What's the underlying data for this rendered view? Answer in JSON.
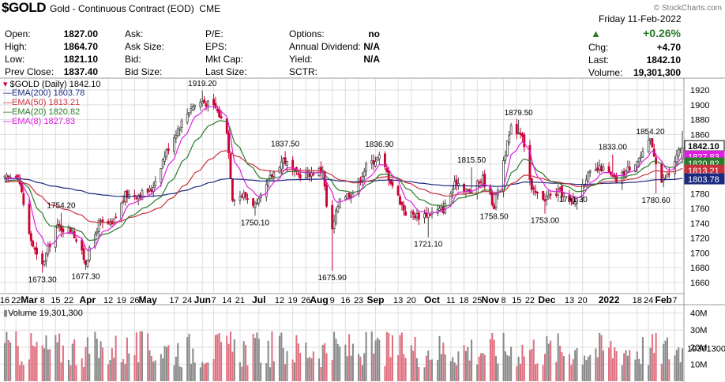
{
  "header": {
    "symbol": "$GOLD",
    "description": "Gold - Continuous Contract (EOD)",
    "exchange": "CME",
    "watermark": "© StockCharts.com"
  },
  "quote": {
    "left": [
      {
        "label": "Open:",
        "value": "1827.00"
      },
      {
        "label": "High:",
        "value": "1864.70"
      },
      {
        "label": "Low:",
        "value": "1821.10"
      },
      {
        "label": "Prev Close:",
        "value": "1837.40"
      }
    ],
    "mid": [
      {
        "label": "Ask:",
        "value": ""
      },
      {
        "label": "Ask Size:",
        "value": ""
      },
      {
        "label": "Bid:",
        "value": ""
      },
      {
        "label": "Bid Size:",
        "value": ""
      }
    ],
    "right_a": [
      {
        "label": "P/E:",
        "value": ""
      },
      {
        "label": "EPS:",
        "value": ""
      },
      {
        "label": "Mkt Cap:",
        "value": ""
      },
      {
        "label": "Last Size:",
        "value": ""
      }
    ],
    "right_b": [
      {
        "label": "Options:",
        "value": "no"
      },
      {
        "label": "Annual Dividend:",
        "value": "N/A"
      },
      {
        "label": "Yield:",
        "value": "N/A"
      },
      {
        "label": "SCTR:",
        "value": ""
      }
    ],
    "date": "Friday  11-Feb-2022",
    "change_pct": "+0.26%",
    "last": [
      {
        "label": "Chg:",
        "value": "+4.70"
      },
      {
        "label": "Last:",
        "value": "1842.10"
      },
      {
        "label": "Volume:",
        "value": "19,301,300"
      }
    ]
  },
  "legend": {
    "main": "$GOLD (Daily) 1842.10",
    "ema200": "EMA(200) 1803.78",
    "ema50": "EMA(50) 1813.21",
    "ema20": "EMA(20) 1820.82",
    "ema8": "EMA(8) 1827.83",
    "volume": "Volume 19,301,300"
  },
  "colors": {
    "up": "#444444",
    "down": "#cc0033",
    "ema200": "#1a2a80",
    "ema50": "#c8323c",
    "ema20": "#2a7a2a",
    "ema8": "#e020e0",
    "vol_up": "#8a8a8a",
    "vol_down": "#e07080",
    "grid": "#dddddd"
  },
  "chart_data": [
    {
      "type": "candlestick",
      "ylim": [
        1645,
        1935
      ],
      "yticks": [
        1660,
        1680,
        1700,
        1720,
        1740,
        1760,
        1780,
        1800,
        1820,
        1840,
        1860,
        1880,
        1900,
        1920
      ],
      "x_range": [
        "2021-02-16",
        "2022-02-11"
      ],
      "xticks": [
        {
          "label": "16",
          "date": "2021-02-16"
        },
        {
          "label": "22",
          "date": "2021-02-22"
        },
        {
          "label": "Mar",
          "date": "2021-03-01"
        },
        {
          "label": "8",
          "date": "2021-03-08"
        },
        {
          "label": "15",
          "date": "2021-03-15"
        },
        {
          "label": "22",
          "date": "2021-03-22"
        },
        {
          "label": "Apr",
          "date": "2021-04-01"
        },
        {
          "label": "12",
          "date": "2021-04-12"
        },
        {
          "label": "19",
          "date": "2021-04-19"
        },
        {
          "label": "26",
          "date": "2021-04-26"
        },
        {
          "label": "May",
          "date": "2021-05-03"
        },
        {
          "label": "17",
          "date": "2021-05-17"
        },
        {
          "label": "24",
          "date": "2021-05-24"
        },
        {
          "label": "Jun",
          "date": "2021-06-01"
        },
        {
          "label": "7",
          "date": "2021-06-07"
        },
        {
          "label": "14",
          "date": "2021-06-14"
        },
        {
          "label": "21",
          "date": "2021-06-21"
        },
        {
          "label": "Jul",
          "date": "2021-07-01"
        },
        {
          "label": "12",
          "date": "2021-07-12"
        },
        {
          "label": "19",
          "date": "2021-07-19"
        },
        {
          "label": "26",
          "date": "2021-07-26"
        },
        {
          "label": "Aug",
          "date": "2021-08-02"
        },
        {
          "label": "9",
          "date": "2021-08-09"
        },
        {
          "label": "16",
          "date": "2021-08-16"
        },
        {
          "label": "23",
          "date": "2021-08-23"
        },
        {
          "label": "Sep",
          "date": "2021-09-01"
        },
        {
          "label": "13",
          "date": "2021-09-13"
        },
        {
          "label": "20",
          "date": "2021-09-20"
        },
        {
          "label": "Oct",
          "date": "2021-10-01"
        },
        {
          "label": "11",
          "date": "2021-10-11"
        },
        {
          "label": "18",
          "date": "2021-10-18"
        },
        {
          "label": "25",
          "date": "2021-10-25"
        },
        {
          "label": "Nov",
          "date": "2021-11-01"
        },
        {
          "label": "8",
          "date": "2021-11-08"
        },
        {
          "label": "15",
          "date": "2021-11-15"
        },
        {
          "label": "22",
          "date": "2021-11-22"
        },
        {
          "label": "Dec",
          "date": "2021-12-01"
        },
        {
          "label": "13",
          "date": "2021-12-13"
        },
        {
          "label": "20",
          "date": "2021-12-20"
        },
        {
          "label": "2022",
          "date": "2022-01-03"
        },
        {
          "label": "18",
          "date": "2022-01-18"
        },
        {
          "label": "24",
          "date": "2022-01-24"
        },
        {
          "label": "Feb",
          "date": "2022-02-01"
        },
        {
          "label": "7",
          "date": "2022-02-07"
        }
      ],
      "close_anchors": [
        [
          "2021-02-16",
          1800
        ],
        [
          "2021-02-23",
          1808
        ],
        [
          "2021-03-01",
          1725
        ],
        [
          "2021-03-05",
          1695
        ],
        [
          "2021-03-08",
          1683
        ],
        [
          "2021-03-15",
          1735
        ],
        [
          "2021-03-24",
          1730
        ],
        [
          "2021-03-31",
          1687
        ],
        [
          "2021-04-07",
          1740
        ],
        [
          "2021-04-14",
          1737
        ],
        [
          "2021-04-21",
          1778
        ],
        [
          "2021-04-27",
          1778
        ],
        [
          "2021-05-05",
          1785
        ],
        [
          "2021-05-12",
          1832
        ],
        [
          "2021-05-19",
          1868
        ],
        [
          "2021-05-26",
          1897
        ],
        [
          "2021-06-01",
          1905
        ],
        [
          "2021-06-08",
          1896
        ],
        [
          "2021-06-14",
          1866
        ],
        [
          "2021-06-17",
          1775
        ],
        [
          "2021-06-23",
          1778
        ],
        [
          "2021-06-30",
          1763
        ],
        [
          "2021-07-07",
          1801
        ],
        [
          "2021-07-14",
          1827
        ],
        [
          "2021-07-21",
          1805
        ],
        [
          "2021-07-28",
          1807
        ],
        [
          "2021-08-04",
          1813
        ],
        [
          "2021-08-06",
          1763
        ],
        [
          "2021-08-09",
          1730
        ],
        [
          "2021-08-13",
          1776
        ],
        [
          "2021-08-20",
          1781
        ],
        [
          "2021-08-27",
          1817
        ],
        [
          "2021-09-03",
          1830
        ],
        [
          "2021-09-10",
          1792
        ],
        [
          "2021-09-17",
          1754
        ],
        [
          "2021-09-24",
          1750
        ],
        [
          "2021-09-30",
          1754
        ],
        [
          "2021-10-07",
          1759
        ],
        [
          "2021-10-14",
          1797
        ],
        [
          "2021-10-21",
          1781
        ],
        [
          "2021-10-28",
          1801
        ],
        [
          "2021-11-03",
          1763
        ],
        [
          "2021-11-08",
          1825
        ],
        [
          "2021-11-12",
          1868
        ],
        [
          "2021-11-18",
          1862
        ],
        [
          "2021-11-23",
          1783
        ],
        [
          "2021-11-30",
          1774
        ],
        [
          "2021-12-08",
          1783
        ],
        [
          "2021-12-15",
          1764
        ],
        [
          "2021-12-22",
          1803
        ],
        [
          "2021-12-30",
          1815
        ],
        [
          "2022-01-07",
          1797
        ],
        [
          "2022-01-14",
          1816
        ],
        [
          "2022-01-21",
          1833
        ],
        [
          "2022-01-25",
          1853
        ],
        [
          "2022-01-31",
          1796
        ],
        [
          "2022-02-04",
          1807
        ],
        [
          "2022-02-09",
          1836
        ],
        [
          "2022-02-11",
          1842
        ]
      ],
      "price_labels": [
        {
          "text": "1919.20",
          "date": "2021-06-01",
          "value": 1919.2,
          "pos": "above"
        },
        {
          "text": "1879.50",
          "date": "2021-11-16",
          "value": 1879.5,
          "pos": "above"
        },
        {
          "text": "1854.20",
          "date": "2022-01-25",
          "value": 1854.2,
          "pos": "above"
        },
        {
          "text": "1837.50",
          "date": "2021-07-15",
          "value": 1837.5,
          "pos": "above"
        },
        {
          "text": "1836.90",
          "date": "2021-09-03",
          "value": 1836.9,
          "pos": "above"
        },
        {
          "text": "1833.00",
          "date": "2022-01-05",
          "value": 1833.0,
          "pos": "above"
        },
        {
          "text": "1815.50",
          "date": "2021-10-22",
          "value": 1815.5,
          "pos": "above"
        },
        {
          "text": "1754.20",
          "date": "2021-03-18",
          "value": 1754.2,
          "pos": "above"
        },
        {
          "text": "1750.10",
          "date": "2021-06-29",
          "value": 1750.1,
          "pos": "below"
        },
        {
          "text": "1758.50",
          "date": "2021-11-03",
          "value": 1758.5,
          "pos": "below"
        },
        {
          "text": "1781.30",
          "date": "2021-12-15",
          "value": 1781.3,
          "pos": "below"
        },
        {
          "text": "1780.60",
          "date": "2022-01-28",
          "value": 1780.6,
          "pos": "below"
        },
        {
          "text": "1753.00",
          "date": "2021-11-30",
          "value": 1753.0,
          "pos": "below"
        },
        {
          "text": "1721.10",
          "date": "2021-09-29",
          "value": 1721.1,
          "pos": "below"
        },
        {
          "text": "1675.90",
          "date": "2021-08-09",
          "value": 1675.9,
          "pos": "below"
        },
        {
          "text": "1673.30",
          "date": "2021-03-08",
          "value": 1673.3,
          "pos": "below"
        },
        {
          "text": "1677.30",
          "date": "2021-03-31",
          "value": 1677.3,
          "pos": "below"
        }
      ],
      "right_axis_values": [
        {
          "text": "1842.10",
          "value": 1842.1,
          "color": "#000000",
          "bold": true
        },
        {
          "text": "1827.83",
          "value": 1827.83,
          "color": "#e020e0"
        },
        {
          "text": "1820.82",
          "value": 1820.82,
          "color": "#2a7a2a"
        },
        {
          "text": "1813.21",
          "value": 1813.21,
          "color": "#c8323c"
        },
        {
          "text": "1803.78",
          "value": 1803.78,
          "color": "#1a2a80"
        }
      ],
      "ema_periods": [
        200,
        50,
        20,
        8
      ]
    },
    {
      "type": "bar",
      "name": "Volume",
      "ylim": [
        0,
        44000000
      ],
      "yticks": [
        {
          "label": "40M",
          "value": 40000000
        },
        {
          "label": "30M",
          "value": 30000000
        },
        {
          "label": "20M",
          "value": 20000000
        },
        {
          "label": "10M",
          "value": 10000000
        }
      ],
      "last_value_label": "19301300",
      "last_value": 19301300,
      "typical_range": [
        8000000,
        38000000
      ]
    }
  ]
}
